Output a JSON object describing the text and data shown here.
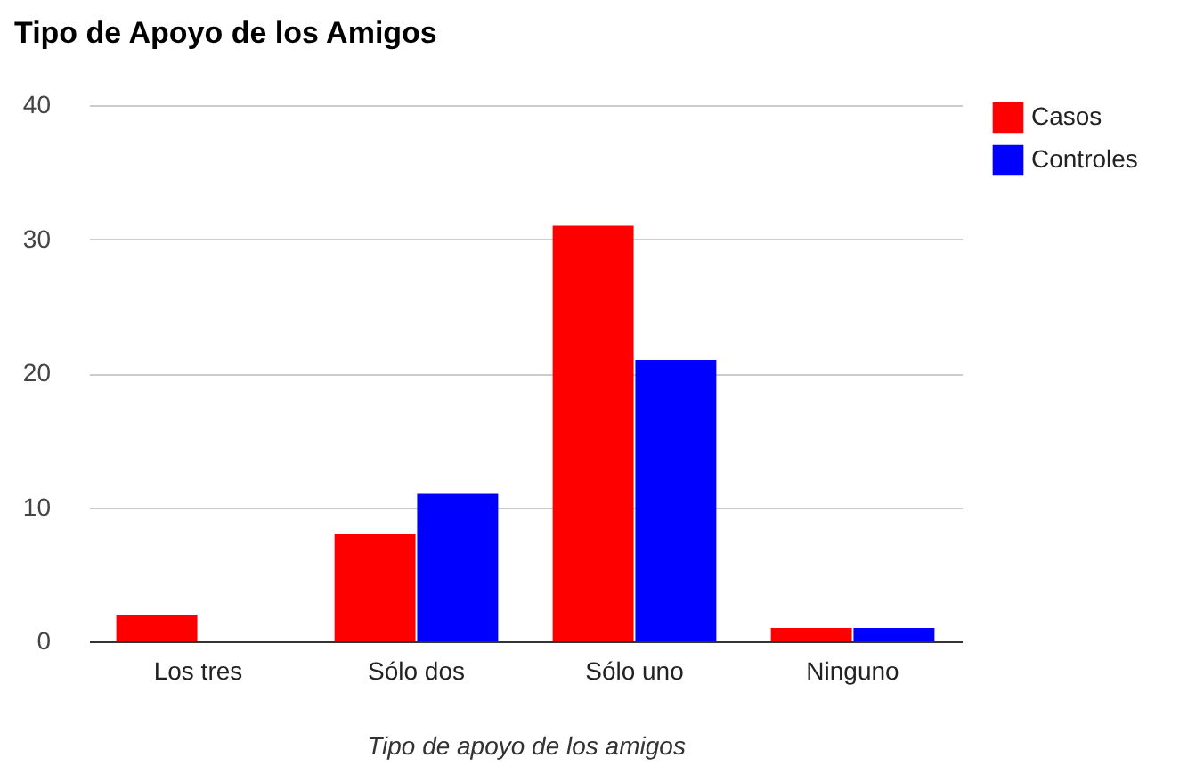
{
  "chart_data": {
    "type": "bar",
    "title": "Tipo de Apoyo de los Amigos",
    "xlabel": "Tipo de apoyo de los amigos",
    "categories": [
      "Los tres",
      "Sólo dos",
      "Sólo uno",
      "Ninguno"
    ],
    "series": [
      {
        "name": "Casos",
        "color": "#ff0000",
        "values": [
          2,
          8,
          31,
          1
        ]
      },
      {
        "name": "Controles",
        "color": "#0000ff",
        "values": [
          0,
          11,
          21,
          1
        ]
      }
    ],
    "ylim": [
      0,
      40
    ],
    "yticks": [
      0,
      10,
      20,
      30,
      40
    ],
    "grid": "y",
    "legend": "top right"
  }
}
